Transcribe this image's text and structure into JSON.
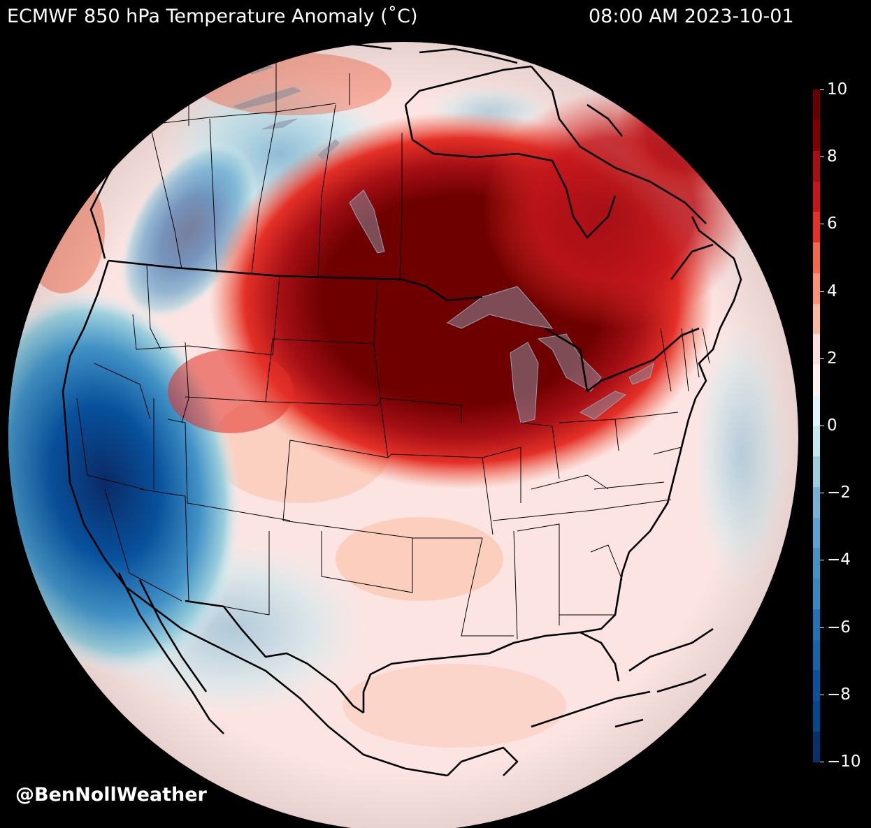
{
  "header": {
    "title": "ECMWF 850 hPa Temperature Anomaly (˚C)",
    "timestamp": "08:00 AM 2023-10-01"
  },
  "watermark": "@BenNollWeather",
  "colorbar": {
    "min": -10,
    "max": 10,
    "ticks": [
      "10",
      "8",
      "6",
      "4",
      "2",
      "0",
      "−2",
      "−4",
      "−6",
      "−8",
      "−10"
    ],
    "colors": [
      "#08306b",
      "#08468f",
      "#08519c",
      "#1764ab",
      "#2171b5",
      "#3787c0",
      "#4292c6",
      "#5ba3d0",
      "#74b3d3",
      "#9ccfdc",
      "#c6e8ef",
      "#e3f5fa",
      "#fdf2f2",
      "#fde0dc",
      "#fcbba1",
      "#fc9272",
      "#f4694a",
      "#e43027",
      "#c5161c",
      "#a50f15",
      "#800000",
      "#670000"
    ]
  },
  "map": {
    "projection": "orthographic",
    "region": "North America",
    "ocean_color": "#fbe4e1",
    "warm_core_color": "#6e0000",
    "cold_core_color": "#0a2a66"
  }
}
